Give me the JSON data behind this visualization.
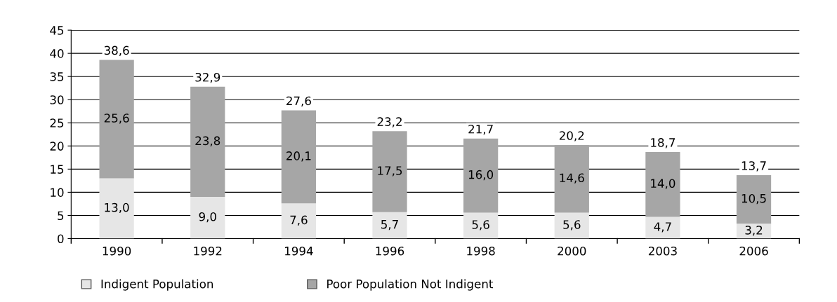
{
  "chart_data": {
    "type": "bar",
    "stacked": true,
    "categories": [
      "1990",
      "1992",
      "1994",
      "1996",
      "1998",
      "2000",
      "2003",
      "2006"
    ],
    "series": [
      {
        "name": "Indigent Population",
        "color": "#e6e6e6",
        "values": [
          13.0,
          9.0,
          7.6,
          5.7,
          5.6,
          5.6,
          4.7,
          3.2
        ],
        "value_labels": [
          "13,0",
          "9,0",
          "7,6",
          "5,7",
          "5,6",
          "5,6",
          "4,7",
          "3,2"
        ]
      },
      {
        "name": "Poor Population Not Indigent",
        "color": "#a6a6a6",
        "values": [
          25.6,
          23.8,
          20.1,
          17.5,
          16.0,
          14.6,
          14.0,
          10.5
        ],
        "value_labels": [
          "25,6",
          "23,8",
          "20,1",
          "17,5",
          "16,0",
          "14,6",
          "14,0",
          "10,5"
        ]
      }
    ],
    "totals": [
      "38,6",
      "32,9",
      "27,6",
      "23,2",
      "21,7",
      "20,2",
      "18,7",
      "13,7"
    ],
    "ylim": [
      0,
      45
    ],
    "yticks": [
      0,
      5,
      10,
      15,
      20,
      25,
      30,
      35,
      40,
      45
    ],
    "grid": "y",
    "legend": "bottom"
  }
}
